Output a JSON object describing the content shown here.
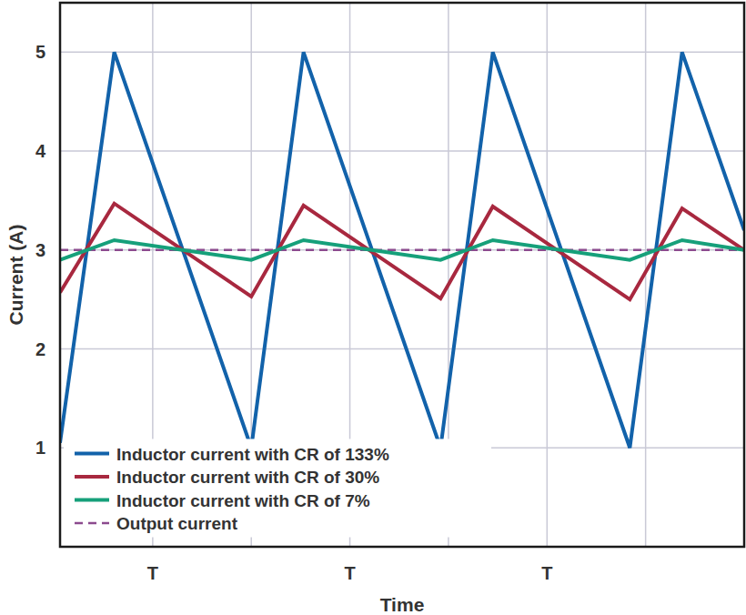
{
  "chart_data": {
    "type": "line",
    "x_label": "Time",
    "y_label": "Current (A)",
    "x": [
      0.06,
      0.61,
      2.0,
      2.53,
      3.92,
      4.45,
      5.84,
      6.37,
      7.0
    ],
    "xlim": [
      0.06,
      7
    ],
    "xticks": [
      {
        "value": 1,
        "label": "T"
      },
      {
        "value": 2,
        "label": null
      },
      {
        "value": 3,
        "label": "T"
      },
      {
        "value": 4,
        "label": null
      },
      {
        "value": 5,
        "label": "T"
      },
      {
        "value": 6,
        "label": null
      }
    ],
    "ylim": [
      0,
      5.5
    ],
    "yticks": [
      1,
      2,
      3,
      4,
      5
    ],
    "grid": true,
    "legend": "lower left",
    "series": [
      {
        "name": "Inductor current with CR of 133%",
        "color": "#1262aa",
        "line_style": "solid",
        "values": [
          1.05,
          5,
          1,
          5,
          1,
          5,
          1,
          5,
          3.2
        ]
      },
      {
        "name": "Inductor current with CR of 30%",
        "color": "#a8283f",
        "line_style": "solid",
        "values": [
          2.57,
          3.47,
          2.53,
          3.45,
          2.51,
          3.44,
          2.5,
          3.42,
          3.0
        ]
      },
      {
        "name": "Inductor current with CR of 7%",
        "color": "#16a07a",
        "line_style": "solid",
        "values": [
          2.9,
          3.1,
          2.9,
          3.1,
          2.9,
          3.1,
          2.9,
          3.1,
          3.0
        ]
      },
      {
        "name": "Output current",
        "color": "#8c4a8e",
        "line_style": "dashed",
        "values": [
          3,
          3,
          3,
          3,
          3,
          3,
          3,
          3,
          3
        ]
      }
    ]
  }
}
